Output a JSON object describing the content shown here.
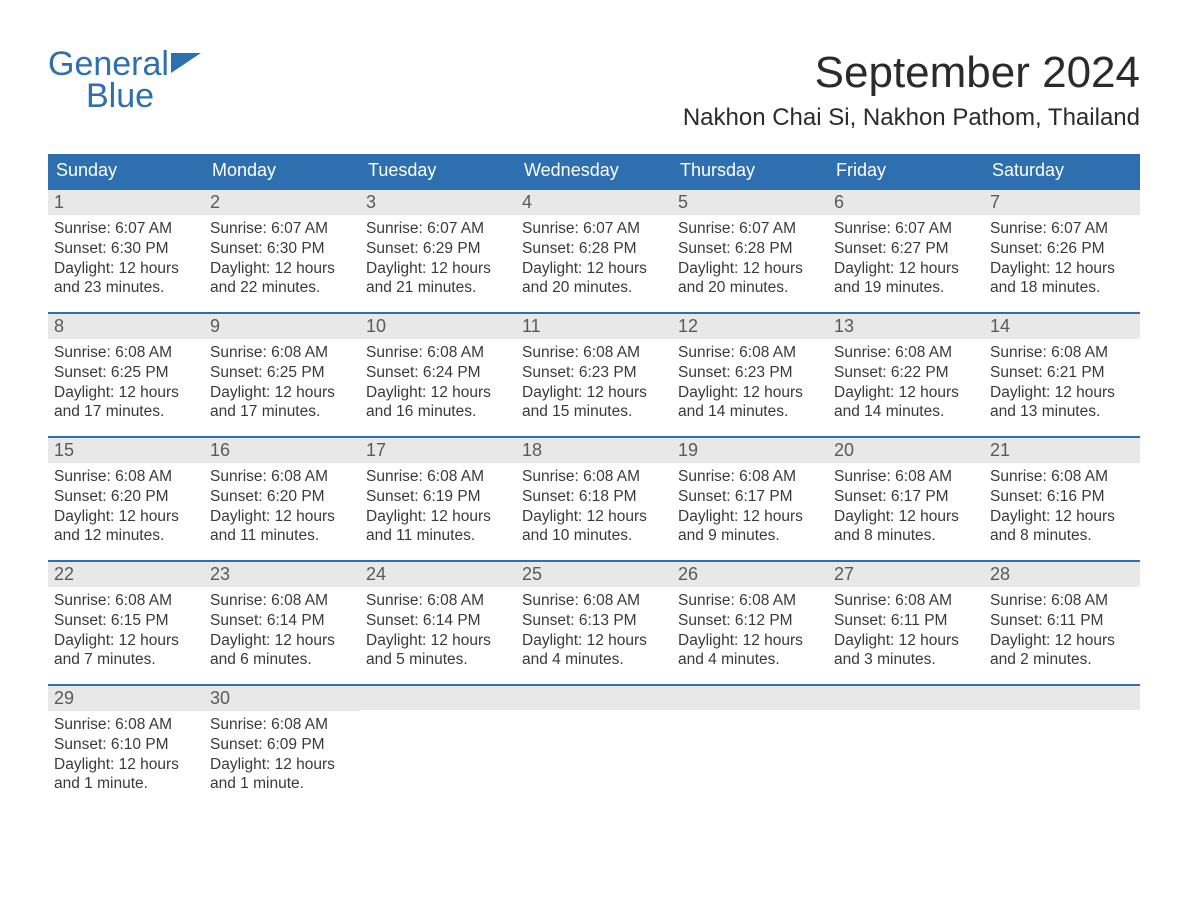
{
  "logo": {
    "line1": "General",
    "line2": "Blue",
    "color": "#2e6fb0"
  },
  "title": "September 2024",
  "location": "Nakhon Chai Si, Nakhon Pathom, Thailand",
  "colors": {
    "header_bg": "#2e6fb0",
    "header_text": "#ffffff",
    "daynum_bg": "#e8e8e8",
    "week_border": "#2e6fb0",
    "body_text": "#3a3a3a",
    "page_bg": "#ffffff"
  },
  "weekdays": [
    "Sunday",
    "Monday",
    "Tuesday",
    "Wednesday",
    "Thursday",
    "Friday",
    "Saturday"
  ],
  "weeks": [
    [
      {
        "day": "1",
        "sunrise": "Sunrise: 6:07 AM",
        "sunset": "Sunset: 6:30 PM",
        "daylight": "Daylight: 12 hours and 23 minutes."
      },
      {
        "day": "2",
        "sunrise": "Sunrise: 6:07 AM",
        "sunset": "Sunset: 6:30 PM",
        "daylight": "Daylight: 12 hours and 22 minutes."
      },
      {
        "day": "3",
        "sunrise": "Sunrise: 6:07 AM",
        "sunset": "Sunset: 6:29 PM",
        "daylight": "Daylight: 12 hours and 21 minutes."
      },
      {
        "day": "4",
        "sunrise": "Sunrise: 6:07 AM",
        "sunset": "Sunset: 6:28 PM",
        "daylight": "Daylight: 12 hours and 20 minutes."
      },
      {
        "day": "5",
        "sunrise": "Sunrise: 6:07 AM",
        "sunset": "Sunset: 6:28 PM",
        "daylight": "Daylight: 12 hours and 20 minutes."
      },
      {
        "day": "6",
        "sunrise": "Sunrise: 6:07 AM",
        "sunset": "Sunset: 6:27 PM",
        "daylight": "Daylight: 12 hours and 19 minutes."
      },
      {
        "day": "7",
        "sunrise": "Sunrise: 6:07 AM",
        "sunset": "Sunset: 6:26 PM",
        "daylight": "Daylight: 12 hours and 18 minutes."
      }
    ],
    [
      {
        "day": "8",
        "sunrise": "Sunrise: 6:08 AM",
        "sunset": "Sunset: 6:25 PM",
        "daylight": "Daylight: 12 hours and 17 minutes."
      },
      {
        "day": "9",
        "sunrise": "Sunrise: 6:08 AM",
        "sunset": "Sunset: 6:25 PM",
        "daylight": "Daylight: 12 hours and 17 minutes."
      },
      {
        "day": "10",
        "sunrise": "Sunrise: 6:08 AM",
        "sunset": "Sunset: 6:24 PM",
        "daylight": "Daylight: 12 hours and 16 minutes."
      },
      {
        "day": "11",
        "sunrise": "Sunrise: 6:08 AM",
        "sunset": "Sunset: 6:23 PM",
        "daylight": "Daylight: 12 hours and 15 minutes."
      },
      {
        "day": "12",
        "sunrise": "Sunrise: 6:08 AM",
        "sunset": "Sunset: 6:23 PM",
        "daylight": "Daylight: 12 hours and 14 minutes."
      },
      {
        "day": "13",
        "sunrise": "Sunrise: 6:08 AM",
        "sunset": "Sunset: 6:22 PM",
        "daylight": "Daylight: 12 hours and 14 minutes."
      },
      {
        "day": "14",
        "sunrise": "Sunrise: 6:08 AM",
        "sunset": "Sunset: 6:21 PM",
        "daylight": "Daylight: 12 hours and 13 minutes."
      }
    ],
    [
      {
        "day": "15",
        "sunrise": "Sunrise: 6:08 AM",
        "sunset": "Sunset: 6:20 PM",
        "daylight": "Daylight: 12 hours and 12 minutes."
      },
      {
        "day": "16",
        "sunrise": "Sunrise: 6:08 AM",
        "sunset": "Sunset: 6:20 PM",
        "daylight": "Daylight: 12 hours and 11 minutes."
      },
      {
        "day": "17",
        "sunrise": "Sunrise: 6:08 AM",
        "sunset": "Sunset: 6:19 PM",
        "daylight": "Daylight: 12 hours and 11 minutes."
      },
      {
        "day": "18",
        "sunrise": "Sunrise: 6:08 AM",
        "sunset": "Sunset: 6:18 PM",
        "daylight": "Daylight: 12 hours and 10 minutes."
      },
      {
        "day": "19",
        "sunrise": "Sunrise: 6:08 AM",
        "sunset": "Sunset: 6:17 PM",
        "daylight": "Daylight: 12 hours and 9 minutes."
      },
      {
        "day": "20",
        "sunrise": "Sunrise: 6:08 AM",
        "sunset": "Sunset: 6:17 PM",
        "daylight": "Daylight: 12 hours and 8 minutes."
      },
      {
        "day": "21",
        "sunrise": "Sunrise: 6:08 AM",
        "sunset": "Sunset: 6:16 PM",
        "daylight": "Daylight: 12 hours and 8 minutes."
      }
    ],
    [
      {
        "day": "22",
        "sunrise": "Sunrise: 6:08 AM",
        "sunset": "Sunset: 6:15 PM",
        "daylight": "Daylight: 12 hours and 7 minutes."
      },
      {
        "day": "23",
        "sunrise": "Sunrise: 6:08 AM",
        "sunset": "Sunset: 6:14 PM",
        "daylight": "Daylight: 12 hours and 6 minutes."
      },
      {
        "day": "24",
        "sunrise": "Sunrise: 6:08 AM",
        "sunset": "Sunset: 6:14 PM",
        "daylight": "Daylight: 12 hours and 5 minutes."
      },
      {
        "day": "25",
        "sunrise": "Sunrise: 6:08 AM",
        "sunset": "Sunset: 6:13 PM",
        "daylight": "Daylight: 12 hours and 4 minutes."
      },
      {
        "day": "26",
        "sunrise": "Sunrise: 6:08 AM",
        "sunset": "Sunset: 6:12 PM",
        "daylight": "Daylight: 12 hours and 4 minutes."
      },
      {
        "day": "27",
        "sunrise": "Sunrise: 6:08 AM",
        "sunset": "Sunset: 6:11 PM",
        "daylight": "Daylight: 12 hours and 3 minutes."
      },
      {
        "day": "28",
        "sunrise": "Sunrise: 6:08 AM",
        "sunset": "Sunset: 6:11 PM",
        "daylight": "Daylight: 12 hours and 2 minutes."
      }
    ],
    [
      {
        "day": "29",
        "sunrise": "Sunrise: 6:08 AM",
        "sunset": "Sunset: 6:10 PM",
        "daylight": "Daylight: 12 hours and 1 minute."
      },
      {
        "day": "30",
        "sunrise": "Sunrise: 6:08 AM",
        "sunset": "Sunset: 6:09 PM",
        "daylight": "Daylight: 12 hours and 1 minute."
      },
      {
        "empty": true
      },
      {
        "empty": true
      },
      {
        "empty": true
      },
      {
        "empty": true
      },
      {
        "empty": true
      }
    ]
  ]
}
